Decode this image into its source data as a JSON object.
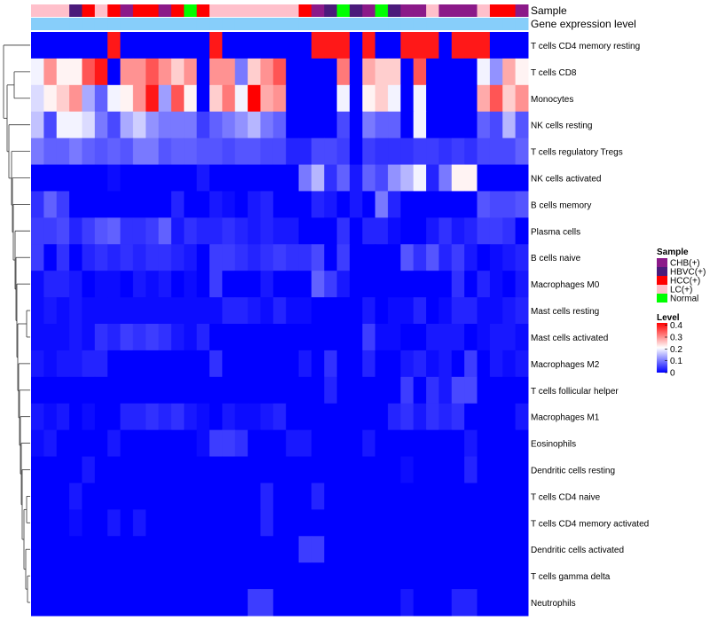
{
  "chart_data": {
    "type": "heatmap",
    "title": "",
    "annotation_track_labels": [
      "Sample",
      "Gene expression level"
    ],
    "rows": [
      "T cells CD4 memory resting",
      "T cells CD8",
      "Monocytes",
      "NK cells resting",
      "T cells regulatory  Tregs",
      "NK cells activated",
      "B cells memory",
      "Plasma cells",
      "B cells naive",
      "Macrophages M0",
      "Mast cells resting",
      "Mast cells activated",
      "Macrophages M2",
      "T cells follicular helper",
      "Macrophages M1",
      "Eosinophils",
      "Dendritic cells resting",
      "T cells CD4 naive",
      "T cells CD4 memory activated",
      "Dendritic cells activated",
      "T cells gamma delta",
      "Neutrophils"
    ],
    "sample_groups": [
      "LC(+)",
      "LC(+)",
      "LC(+)",
      "HBVC(+)",
      "HCC(+)",
      "LC(+)",
      "HCC(+)",
      "CHB(+)",
      "HCC(+)",
      "HCC(+)",
      "CHB(+)",
      "HCC(+)",
      "Normal",
      "HCC(+)",
      "LC(+)",
      "LC(+)",
      "LC(+)",
      "LC(+)",
      "LC(+)",
      "LC(+)",
      "LC(+)",
      "HCC(+)",
      "CHB(+)",
      "HBVC(+)",
      "Normal",
      "HBVC(+)",
      "CHB(+)",
      "Normal",
      "HBVC(+)",
      "CHB(+)",
      "CHB(+)",
      "LC(+)",
      "CHB(+)",
      "CHB(+)",
      "CHB(+)",
      "LC(+)",
      "HCC(+)",
      "HCC(+)",
      "CHB(+)"
    ],
    "gene_expression_level": [
      1,
      1,
      1,
      1,
      1,
      1,
      1,
      1,
      1,
      1,
      1,
      1,
      1,
      1,
      1,
      1,
      1,
      1,
      1,
      1,
      1,
      1,
      1,
      1,
      1,
      1,
      1,
      1,
      1,
      1,
      1,
      1,
      1,
      1,
      1,
      1,
      1,
      1,
      1
    ],
    "values": [
      [
        0,
        0,
        0,
        0,
        0,
        0,
        0.4,
        0,
        0,
        0,
        0,
        0,
        0,
        0,
        0.4,
        0,
        0,
        0,
        0,
        0,
        0,
        0,
        0.4,
        0.4,
        0.4,
        0,
        0.4,
        0,
        0,
        0.4,
        0.4,
        0.4,
        0,
        0.4,
        0.4,
        0.4,
        0,
        0,
        0
      ],
      [
        0.2,
        0.3,
        0.22,
        0.22,
        0.35,
        0.4,
        0,
        0.3,
        0.3,
        0.35,
        0.3,
        0.25,
        0.3,
        0,
        0.3,
        0.3,
        0.1,
        0.25,
        0.3,
        0.35,
        0,
        0,
        0,
        0,
        0.32,
        0,
        0.28,
        0.25,
        0.25,
        0,
        0.35,
        0,
        0,
        0,
        0,
        0.2,
        0.12,
        0.28,
        0.22
      ],
      [
        0.18,
        0.22,
        0.25,
        0.3,
        0.14,
        0.08,
        0.2,
        0.22,
        0.3,
        0.4,
        0.13,
        0.35,
        0.22,
        0,
        0.25,
        0.32,
        0.2,
        0.42,
        0.28,
        0.3,
        0,
        0,
        0,
        0,
        0.2,
        0,
        0.22,
        0.25,
        0.2,
        0,
        0.2,
        0,
        0,
        0,
        0,
        0.28,
        0.35,
        0.25,
        0.3
      ],
      [
        0.16,
        0.06,
        0.2,
        0.2,
        0.18,
        0.1,
        0.06,
        0.14,
        0.17,
        0.12,
        0.1,
        0.1,
        0.1,
        0.05,
        0.08,
        0.1,
        0.12,
        0.15,
        0.1,
        0.08,
        0,
        0,
        0,
        0,
        0.06,
        0,
        0.1,
        0.08,
        0.08,
        0,
        0.2,
        0,
        0,
        0,
        0,
        0.08,
        0.06,
        0.15,
        0.07
      ],
      [
        0.1,
        0.08,
        0.08,
        0.1,
        0.08,
        0.07,
        0.08,
        0.07,
        0.1,
        0.1,
        0.07,
        0.08,
        0.08,
        0.07,
        0.07,
        0.06,
        0.07,
        0.07,
        0.06,
        0.06,
        0.03,
        0.03,
        0.06,
        0.06,
        0.05,
        0,
        0.05,
        0.04,
        0.04,
        0.04,
        0.05,
        0.05,
        0.04,
        0.05,
        0.04,
        0.06,
        0.06,
        0.06,
        0.08
      ],
      [
        0,
        0,
        0,
        0,
        0,
        0,
        0.01,
        0,
        0,
        0,
        0,
        0,
        0,
        0.02,
        0,
        0,
        0,
        0,
        0,
        0,
        0,
        0.1,
        0.15,
        0.04,
        0.08,
        0.02,
        0.08,
        0.06,
        0.12,
        0.15,
        0.2,
        0.03,
        0.1,
        0.22,
        0.22,
        0,
        0,
        0,
        0
      ],
      [
        0.04,
        0.08,
        0.05,
        0,
        0,
        0,
        0,
        0,
        0,
        0,
        0,
        0.03,
        0,
        0,
        0.02,
        0.01,
        0,
        0.02,
        0.03,
        0,
        0,
        0,
        0.03,
        0.02,
        0,
        0.02,
        0,
        0.1,
        0.03,
        0,
        0,
        0,
        0,
        0,
        0,
        0.07,
        0.06,
        0.06,
        0.07
      ],
      [
        0.05,
        0.05,
        0.06,
        0.03,
        0.05,
        0.07,
        0.08,
        0.04,
        0.04,
        0.05,
        0.08,
        0.02,
        0.04,
        0.03,
        0.03,
        0.04,
        0.03,
        0.02,
        0.03,
        0.02,
        0.02,
        0,
        0,
        0,
        0.04,
        0,
        0.03,
        0.03,
        0.01,
        0,
        0,
        0.02,
        0.04,
        0.02,
        0.03,
        0.05,
        0.05,
        0.04,
        0
      ],
      [
        0.05,
        0,
        0.04,
        0,
        0.03,
        0.04,
        0.03,
        0.04,
        0.03,
        0.04,
        0.04,
        0.03,
        0.02,
        0,
        0.05,
        0.05,
        0.04,
        0.03,
        0.04,
        0.05,
        0.04,
        0.04,
        0.06,
        0,
        0.05,
        0,
        0,
        0,
        0,
        0.07,
        0.04,
        0.07,
        0.03,
        0.05,
        0.02,
        0,
        0.01,
        0.02,
        0.03
      ],
      [
        0.01,
        0.03,
        0.03,
        0.02,
        0,
        0.01,
        0.01,
        0,
        0.02,
        0.01,
        0.02,
        0,
        0.01,
        0,
        0.05,
        0,
        0,
        0,
        0.02,
        0,
        0,
        0,
        0.08,
        0.05,
        0.02,
        0,
        0,
        0,
        0,
        0,
        0,
        0,
        0,
        0.04,
        0,
        0.03,
        0.01,
        0,
        0.02
      ],
      [
        0.01,
        0.02,
        0.01,
        0.02,
        0.01,
        0.01,
        0.01,
        0.01,
        0.01,
        0.01,
        0.01,
        0.01,
        0.01,
        0.01,
        0.01,
        0.03,
        0.03,
        0.02,
        0.01,
        0.03,
        0.01,
        0.01,
        0,
        0,
        0,
        0,
        0.02,
        0,
        0.01,
        0.01,
        0.03,
        0,
        0.01,
        0.03,
        0.03,
        0.01,
        0.01,
        0.02,
        0.03
      ],
      [
        0.01,
        0.01,
        0.01,
        0.02,
        0.01,
        0.04,
        0.03,
        0.05,
        0.04,
        0.05,
        0.04,
        0.02,
        0.01,
        0.03,
        0,
        0,
        0,
        0,
        0,
        0,
        0,
        0,
        0,
        0,
        0,
        0,
        0.05,
        0.01,
        0.01,
        0,
        0,
        0.02,
        0.02,
        0.02,
        0,
        0.01,
        0.02,
        0.02,
        0.01
      ],
      [
        0.02,
        0.01,
        0.02,
        0.02,
        0.03,
        0.03,
        0,
        0,
        0,
        0,
        0,
        0,
        0,
        0,
        0.04,
        0,
        0,
        0,
        0,
        0,
        0,
        0.02,
        0,
        0.04,
        0,
        0,
        0.03,
        0,
        0,
        0.02,
        0.03,
        0.01,
        0.02,
        0,
        0.05,
        0,
        0.02,
        0.01,
        0.02
      ],
      [
        0,
        0,
        0,
        0,
        0,
        0,
        0,
        0,
        0,
        0,
        0,
        0,
        0,
        0,
        0,
        0,
        0,
        0,
        0,
        0,
        0,
        0,
        0,
        0.03,
        0,
        0,
        0,
        0,
        0,
        0.05,
        0,
        0.04,
        0.02,
        0.06,
        0.06,
        0,
        0,
        0,
        0
      ],
      [
        0.02,
        0.01,
        0.02,
        0,
        0.01,
        0,
        0,
        0.03,
        0.03,
        0.04,
        0.03,
        0.04,
        0.02,
        0.01,
        0,
        0.02,
        0.01,
        0.01,
        0.02,
        0.03,
        0,
        0,
        0,
        0,
        0,
        0,
        0,
        0,
        0.03,
        0.04,
        0.02,
        0.04,
        0.03,
        0.04,
        0,
        0,
        0,
        0,
        0.02
      ],
      [
        0.01,
        0.02,
        0,
        0,
        0,
        0,
        0.02,
        0,
        0,
        0,
        0,
        0,
        0,
        0.01,
        0.05,
        0.05,
        0.04,
        0,
        0,
        0,
        0.02,
        0.02,
        0,
        0,
        0,
        0,
        0.02,
        0,
        0,
        0,
        0,
        0,
        0,
        0,
        0.02,
        0,
        0,
        0,
        0
      ],
      [
        0,
        0,
        0,
        0,
        0.02,
        0,
        0,
        0,
        0,
        0,
        0,
        0,
        0,
        0,
        0,
        0,
        0,
        0,
        0,
        0,
        0,
        0,
        0,
        0,
        0,
        0,
        0,
        0,
        0,
        0.01,
        0,
        0,
        0,
        0,
        0.03,
        0,
        0,
        0,
        0
      ],
      [
        0,
        0,
        0,
        0.02,
        0,
        0,
        0,
        0,
        0,
        0,
        0,
        0,
        0,
        0,
        0,
        0,
        0,
        0,
        0.03,
        0,
        0,
        0,
        0.03,
        0,
        0,
        0,
        0,
        0,
        0,
        0,
        0,
        0,
        0,
        0,
        0,
        0,
        0,
        0,
        0
      ],
      [
        0,
        0,
        0,
        0.01,
        0,
        0,
        0.02,
        0,
        0.02,
        0,
        0,
        0,
        0,
        0,
        0,
        0,
        0,
        0,
        0.03,
        0,
        0,
        0,
        0,
        0,
        0,
        0,
        0,
        0,
        0,
        0,
        0,
        0,
        0,
        0,
        0,
        0,
        0,
        0,
        0
      ],
      [
        0,
        0,
        0,
        0,
        0,
        0,
        0,
        0,
        0,
        0,
        0,
        0,
        0,
        0,
        0,
        0,
        0,
        0,
        0,
        0,
        0,
        0.05,
        0.05,
        0,
        0,
        0,
        0,
        0,
        0,
        0,
        0,
        0,
        0,
        0,
        0,
        0,
        0,
        0,
        0
      ],
      [
        0,
        0,
        0,
        0,
        0,
        0,
        0,
        0,
        0,
        0,
        0,
        0,
        0,
        0,
        0,
        0,
        0,
        0,
        0,
        0,
        0,
        0,
        0,
        0,
        0,
        0,
        0,
        0,
        0,
        0,
        0,
        0,
        0,
        0,
        0,
        0,
        0,
        0,
        0
      ],
      [
        0,
        0,
        0,
        0,
        0,
        0,
        0,
        0,
        0,
        0,
        0,
        0,
        0,
        0,
        0,
        0,
        0,
        0.05,
        0.05,
        0,
        0,
        0,
        0,
        0,
        0,
        0,
        0,
        0,
        0,
        0.02,
        0,
        0,
        0,
        0.03,
        0.03,
        0,
        0,
        0,
        0
      ]
    ],
    "legend_sample": {
      "title": "Sample",
      "items": [
        {
          "label": "CHB(+)",
          "color": "#8B1A89"
        },
        {
          "label": "HBVC(+)",
          "color": "#4B1B7B"
        },
        {
          "label": "HCC(+)",
          "color": "#FF0000"
        },
        {
          "label": "LC(+)",
          "color": "#FFC0CB"
        },
        {
          "label": "Normal",
          "color": "#00FF00"
        }
      ]
    },
    "legend_level": {
      "title": "Level",
      "ticks": [
        "0.4",
        "0.3",
        "0.2",
        "0.1",
        "0"
      ],
      "tick_values": [
        0.4,
        0.3,
        0.2,
        0.1,
        0
      ],
      "range": [
        0,
        0.42
      ]
    },
    "colors": {
      "low": "#0000FF",
      "mid": "#FFFFFF",
      "high": "#FF0000",
      "gene_level": "#87CEFA"
    }
  }
}
